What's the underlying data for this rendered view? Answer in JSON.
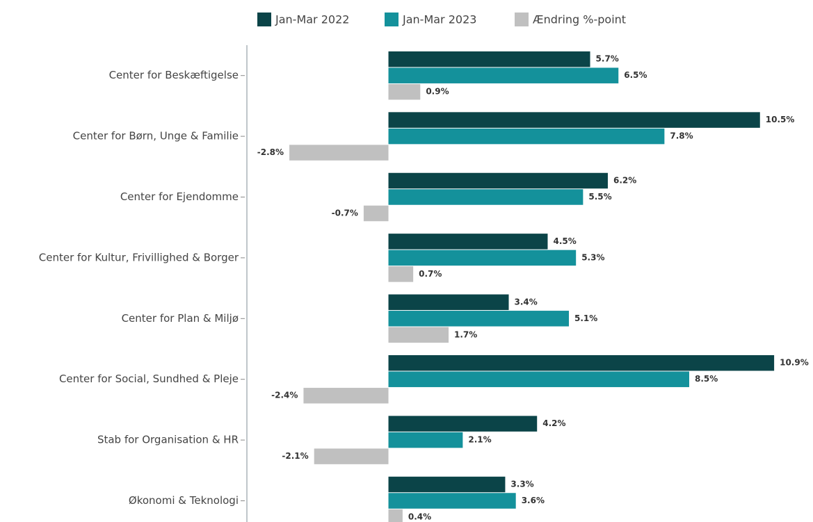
{
  "chart_data": {
    "type": "bar",
    "orientation": "horizontal",
    "categories": [
      "Center for Beskæftigelse",
      "Center for Børn, Unge & Familie",
      "Center for Ejendomme",
      "Center for Kultur, Frivillighed & Borger",
      "Center for Plan & Miljø",
      "Center for Social, Sundhed & Pleje",
      "Stab for Organisation & HR",
      "Økonomi & Teknologi"
    ],
    "series": [
      {
        "name": "Jan-Mar 2022",
        "color": "#0b4448",
        "values": [
          5.7,
          10.5,
          6.2,
          4.5,
          3.4,
          10.9,
          4.2,
          3.3
        ],
        "value_labels": [
          "5.7%",
          "10.5%",
          "6.2%",
          "4.5%",
          "3.4%",
          "10.9%",
          "4.2%",
          "3.3%"
        ]
      },
      {
        "name": "Jan-Mar 2023",
        "color": "#14919b",
        "values": [
          6.5,
          7.8,
          5.5,
          5.3,
          5.1,
          8.5,
          2.1,
          3.6
        ],
        "value_labels": [
          "6.5%",
          "7.8%",
          "5.5%",
          "5.3%",
          "5.1%",
          "8.5%",
          "2.1%",
          "3.6%"
        ]
      },
      {
        "name": "Ændring %-point",
        "color": "#c0c0c0",
        "values": [
          0.9,
          -2.8,
          -0.7,
          0.7,
          1.7,
          -2.4,
          -2.1,
          0.4
        ],
        "value_labels": [
          "0.9%",
          "-2.8%",
          "-0.7%",
          "0.7%",
          "1.7%",
          "-2.4%",
          "-2.1%",
          "0.4%"
        ]
      }
    ],
    "xlim": [
      -4,
      11.9
    ],
    "legend": "top"
  }
}
